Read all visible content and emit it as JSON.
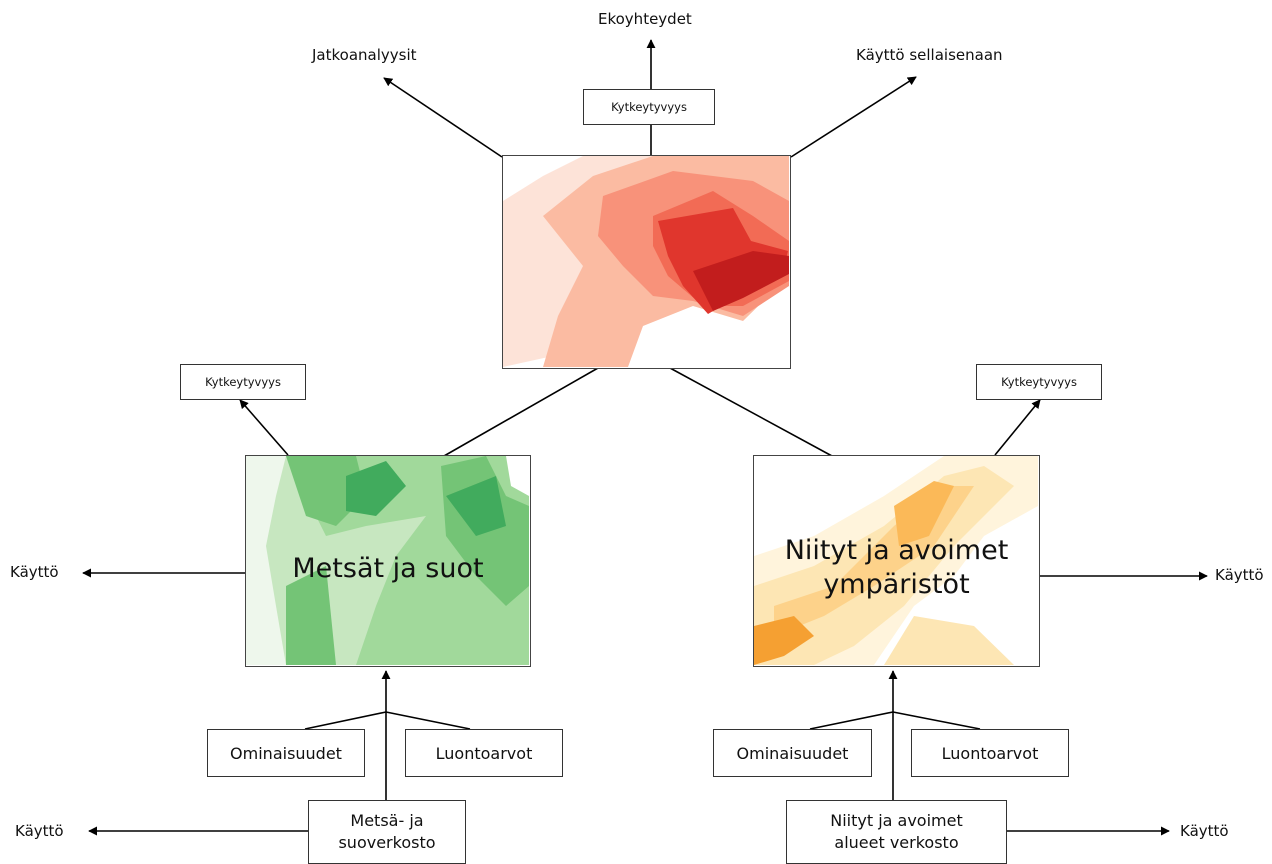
{
  "top": {
    "out_labels": {
      "up": "Ekoyhteydet",
      "left": "Jatkoanalyysit",
      "right": "Käyttö sellaisenaan"
    },
    "connectivity_box": "Kytkeytyvyys",
    "map_colors": [
      "#fde3d8",
      "#fbbba2",
      "#f8927a",
      "#f26b55",
      "#e0362d",
      "#c21d1d"
    ]
  },
  "forest": {
    "title": "Metsät ja suot",
    "connectivity_box": "Kytkeytyvyys",
    "use_label": "Käyttö",
    "inputs": {
      "left": "Ominaisuudet",
      "right": "Luontoarvot"
    },
    "network_lines": [
      "Metsä- ja",
      "suoverkosto"
    ],
    "network_use_label": "Käyttö",
    "map_colors": [
      "#eef7ec",
      "#c7e7c0",
      "#a1d99b",
      "#74c476",
      "#41ab5d"
    ]
  },
  "meadow": {
    "title_lines": [
      "Niityt ja avoimet",
      "ympäristöt"
    ],
    "connectivity_box": "Kytkeytyvyys",
    "use_label": "Käyttö",
    "inputs": {
      "left": "Ominaisuudet",
      "right": "Luontoarvot"
    },
    "network_lines": [
      "Niityt ja avoimet",
      "alueet verkosto"
    ],
    "network_use_label": "Käyttö",
    "map_colors": [
      "#fff4dc",
      "#fde6b4",
      "#fdd28a",
      "#fbb958",
      "#f5a032"
    ]
  }
}
